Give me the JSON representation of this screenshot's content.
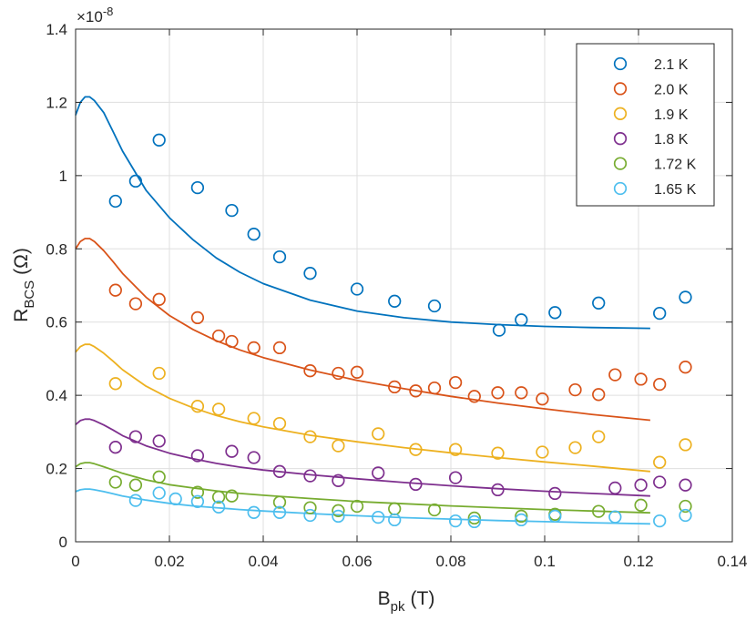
{
  "chart_data": {
    "type": "scatter",
    "title": "",
    "xlabel": "B",
    "xlabel_sub": "pk",
    "xlabel_unit": "(T)",
    "ylabel": "R",
    "ylabel_sub": "BCS",
    "ylabel_unit": "(Ω)",
    "y_exponent_label": "×10",
    "y_exponent_power": "-8",
    "xlim": [
      0,
      0.14
    ],
    "ylim": [
      0,
      1.4
    ],
    "xticks": [
      0,
      0.02,
      0.04,
      0.06,
      0.08,
      0.1,
      0.12,
      0.14
    ],
    "xtick_labels": [
      "0",
      "0.02",
      "0.04",
      "0.06",
      "0.08",
      "0.1",
      "0.12",
      "0.14"
    ],
    "yticks": [
      0,
      0.2,
      0.4,
      0.6,
      0.8,
      1,
      1.2,
      1.4
    ],
    "ytick_labels": [
      "0",
      "0.2",
      "0.4",
      "0.6",
      "0.8",
      "1",
      "1.2",
      "1.4"
    ],
    "grid": true,
    "legend_position": "top-right",
    "series": [
      {
        "name": "2.1 K",
        "color": "#0072BD",
        "points": [
          [
            0.0085,
            0.93
          ],
          [
            0.0128,
            0.985
          ],
          [
            0.0178,
            1.097
          ],
          [
            0.026,
            0.967
          ],
          [
            0.0333,
            0.905
          ],
          [
            0.038,
            0.84
          ],
          [
            0.0435,
            0.778
          ],
          [
            0.05,
            0.733
          ],
          [
            0.06,
            0.69
          ],
          [
            0.068,
            0.657
          ],
          [
            0.0765,
            0.644
          ],
          [
            0.0903,
            0.578
          ],
          [
            0.095,
            0.606
          ],
          [
            0.1022,
            0.626
          ],
          [
            0.1115,
            0.652
          ],
          [
            0.1245,
            0.624
          ],
          [
            0.13,
            0.668
          ]
        ],
        "fit": [
          [
            0,
            1.165
          ],
          [
            0.001,
            1.2
          ],
          [
            0.002,
            1.215
          ],
          [
            0.003,
            1.215
          ],
          [
            0.004,
            1.205
          ],
          [
            0.006,
            1.172
          ],
          [
            0.008,
            1.12
          ],
          [
            0.01,
            1.067
          ],
          [
            0.015,
            0.96
          ],
          [
            0.02,
            0.885
          ],
          [
            0.025,
            0.825
          ],
          [
            0.03,
            0.775
          ],
          [
            0.035,
            0.736
          ],
          [
            0.04,
            0.705
          ],
          [
            0.05,
            0.66
          ],
          [
            0.06,
            0.63
          ],
          [
            0.07,
            0.612
          ],
          [
            0.08,
            0.6
          ],
          [
            0.09,
            0.593
          ],
          [
            0.1,
            0.588
          ],
          [
            0.11,
            0.585
          ],
          [
            0.1225,
            0.583
          ]
        ]
      },
      {
        "name": "2.0 K",
        "color": "#D95319",
        "points": [
          [
            0.0085,
            0.687
          ],
          [
            0.0128,
            0.65
          ],
          [
            0.0178,
            0.662
          ],
          [
            0.026,
            0.612
          ],
          [
            0.0305,
            0.562
          ],
          [
            0.0333,
            0.547
          ],
          [
            0.038,
            0.53
          ],
          [
            0.0435,
            0.53
          ],
          [
            0.05,
            0.467
          ],
          [
            0.056,
            0.46
          ],
          [
            0.06,
            0.463
          ],
          [
            0.068,
            0.423
          ],
          [
            0.0725,
            0.412
          ],
          [
            0.0765,
            0.42
          ],
          [
            0.081,
            0.435
          ],
          [
            0.085,
            0.397
          ],
          [
            0.09,
            0.407
          ],
          [
            0.095,
            0.407
          ],
          [
            0.0995,
            0.39
          ],
          [
            0.1065,
            0.415
          ],
          [
            0.1115,
            0.402
          ],
          [
            0.115,
            0.456
          ],
          [
            0.1205,
            0.444
          ],
          [
            0.1245,
            0.43
          ],
          [
            0.13,
            0.477
          ]
        ],
        "fit": [
          [
            0,
            0.8
          ],
          [
            0.001,
            0.82
          ],
          [
            0.002,
            0.828
          ],
          [
            0.003,
            0.828
          ],
          [
            0.004,
            0.82
          ],
          [
            0.006,
            0.795
          ],
          [
            0.008,
            0.765
          ],
          [
            0.01,
            0.733
          ],
          [
            0.015,
            0.668
          ],
          [
            0.02,
            0.618
          ],
          [
            0.025,
            0.58
          ],
          [
            0.03,
            0.549
          ],
          [
            0.035,
            0.524
          ],
          [
            0.04,
            0.503
          ],
          [
            0.05,
            0.469
          ],
          [
            0.06,
            0.441
          ],
          [
            0.07,
            0.418
          ],
          [
            0.08,
            0.397
          ],
          [
            0.09,
            0.379
          ],
          [
            0.1,
            0.363
          ],
          [
            0.11,
            0.348
          ],
          [
            0.1225,
            0.332
          ]
        ]
      },
      {
        "name": "1.9 K",
        "color": "#EDB120",
        "points": [
          [
            0.0085,
            0.432
          ],
          [
            0.0178,
            0.46
          ],
          [
            0.026,
            0.37
          ],
          [
            0.0305,
            0.362
          ],
          [
            0.038,
            0.337
          ],
          [
            0.0435,
            0.323
          ],
          [
            0.05,
            0.287
          ],
          [
            0.056,
            0.262
          ],
          [
            0.0645,
            0.295
          ],
          [
            0.0725,
            0.252
          ],
          [
            0.081,
            0.252
          ],
          [
            0.09,
            0.242
          ],
          [
            0.0995,
            0.245
          ],
          [
            0.1065,
            0.257
          ],
          [
            0.1115,
            0.287
          ],
          [
            0.1245,
            0.217
          ],
          [
            0.13,
            0.265
          ]
        ],
        "fit": [
          [
            0,
            0.518
          ],
          [
            0.001,
            0.533
          ],
          [
            0.002,
            0.539
          ],
          [
            0.003,
            0.539
          ],
          [
            0.004,
            0.533
          ],
          [
            0.006,
            0.515
          ],
          [
            0.008,
            0.493
          ],
          [
            0.01,
            0.47
          ],
          [
            0.015,
            0.425
          ],
          [
            0.02,
            0.392
          ],
          [
            0.025,
            0.366
          ],
          [
            0.03,
            0.345
          ],
          [
            0.035,
            0.328
          ],
          [
            0.04,
            0.314
          ],
          [
            0.05,
            0.291
          ],
          [
            0.06,
            0.273
          ],
          [
            0.07,
            0.257
          ],
          [
            0.08,
            0.243
          ],
          [
            0.09,
            0.23
          ],
          [
            0.1,
            0.218
          ],
          [
            0.11,
            0.207
          ],
          [
            0.1225,
            0.192
          ]
        ]
      },
      {
        "name": "1.8 K",
        "color": "#7E2F8E",
        "points": [
          [
            0.0085,
            0.258
          ],
          [
            0.0128,
            0.287
          ],
          [
            0.0178,
            0.275
          ],
          [
            0.026,
            0.235
          ],
          [
            0.0333,
            0.247
          ],
          [
            0.038,
            0.23
          ],
          [
            0.0435,
            0.192
          ],
          [
            0.05,
            0.18
          ],
          [
            0.056,
            0.167
          ],
          [
            0.0645,
            0.188
          ],
          [
            0.0725,
            0.157
          ],
          [
            0.081,
            0.175
          ],
          [
            0.09,
            0.142
          ],
          [
            0.1022,
            0.132
          ],
          [
            0.115,
            0.147
          ],
          [
            0.1205,
            0.155
          ],
          [
            0.1245,
            0.163
          ],
          [
            0.13,
            0.155
          ]
        ],
        "fit": [
          [
            0,
            0.32
          ],
          [
            0.001,
            0.331
          ],
          [
            0.002,
            0.335
          ],
          [
            0.003,
            0.335
          ],
          [
            0.004,
            0.331
          ],
          [
            0.006,
            0.319
          ],
          [
            0.008,
            0.305
          ],
          [
            0.01,
            0.29
          ],
          [
            0.015,
            0.262
          ],
          [
            0.02,
            0.242
          ],
          [
            0.025,
            0.227
          ],
          [
            0.03,
            0.214
          ],
          [
            0.035,
            0.204
          ],
          [
            0.04,
            0.196
          ],
          [
            0.05,
            0.183
          ],
          [
            0.06,
            0.172
          ],
          [
            0.07,
            0.162
          ],
          [
            0.08,
            0.153
          ],
          [
            0.09,
            0.145
          ],
          [
            0.1,
            0.138
          ],
          [
            0.11,
            0.132
          ],
          [
            0.1225,
            0.125
          ]
        ]
      },
      {
        "name": "1.72 K",
        "color": "#77AC30",
        "points": [
          [
            0.0085,
            0.163
          ],
          [
            0.0128,
            0.155
          ],
          [
            0.0178,
            0.177
          ],
          [
            0.026,
            0.135
          ],
          [
            0.0305,
            0.122
          ],
          [
            0.0333,
            0.125
          ],
          [
            0.0435,
            0.108
          ],
          [
            0.05,
            0.093
          ],
          [
            0.056,
            0.085
          ],
          [
            0.06,
            0.097
          ],
          [
            0.068,
            0.09
          ],
          [
            0.0765,
            0.087
          ],
          [
            0.085,
            0.065
          ],
          [
            0.095,
            0.07
          ],
          [
            0.1022,
            0.075
          ],
          [
            0.1115,
            0.083
          ],
          [
            0.1205,
            0.1
          ],
          [
            0.13,
            0.097
          ]
        ],
        "fit": [
          [
            0,
            0.205
          ],
          [
            0.001,
            0.213
          ],
          [
            0.002,
            0.216
          ],
          [
            0.003,
            0.216
          ],
          [
            0.004,
            0.213
          ],
          [
            0.006,
            0.205
          ],
          [
            0.008,
            0.196
          ],
          [
            0.01,
            0.187
          ],
          [
            0.015,
            0.169
          ],
          [
            0.02,
            0.156
          ],
          [
            0.025,
            0.147
          ],
          [
            0.03,
            0.139
          ],
          [
            0.035,
            0.132
          ],
          [
            0.04,
            0.127
          ],
          [
            0.05,
            0.118
          ],
          [
            0.06,
            0.11
          ],
          [
            0.07,
            0.104
          ],
          [
            0.08,
            0.098
          ],
          [
            0.09,
            0.093
          ],
          [
            0.1,
            0.088
          ],
          [
            0.11,
            0.084
          ],
          [
            0.1225,
            0.079
          ]
        ]
      },
      {
        "name": "1.65 K",
        "color": "#4DBEEE",
        "points": [
          [
            0.0128,
            0.113
          ],
          [
            0.0178,
            0.133
          ],
          [
            0.0213,
            0.117
          ],
          [
            0.026,
            0.11
          ],
          [
            0.0305,
            0.095
          ],
          [
            0.038,
            0.08
          ],
          [
            0.0435,
            0.08
          ],
          [
            0.05,
            0.072
          ],
          [
            0.056,
            0.07
          ],
          [
            0.0645,
            0.067
          ],
          [
            0.068,
            0.06
          ],
          [
            0.081,
            0.057
          ],
          [
            0.085,
            0.055
          ],
          [
            0.095,
            0.06
          ],
          [
            0.1022,
            0.07
          ],
          [
            0.115,
            0.068
          ],
          [
            0.1245,
            0.057
          ],
          [
            0.13,
            0.072
          ]
        ],
        "fit": [
          [
            0,
            0.137
          ],
          [
            0.001,
            0.142
          ],
          [
            0.002,
            0.144
          ],
          [
            0.003,
            0.144
          ],
          [
            0.004,
            0.142
          ],
          [
            0.006,
            0.137
          ],
          [
            0.008,
            0.131
          ],
          [
            0.01,
            0.125
          ],
          [
            0.015,
            0.114
          ],
          [
            0.02,
            0.105
          ],
          [
            0.025,
            0.098
          ],
          [
            0.03,
            0.093
          ],
          [
            0.035,
            0.088
          ],
          [
            0.04,
            0.084
          ],
          [
            0.05,
            0.077
          ],
          [
            0.06,
            0.071
          ],
          [
            0.07,
            0.066
          ],
          [
            0.08,
            0.062
          ],
          [
            0.09,
            0.058
          ],
          [
            0.1,
            0.055
          ],
          [
            0.11,
            0.052
          ],
          [
            0.1225,
            0.049
          ]
        ]
      }
    ]
  }
}
